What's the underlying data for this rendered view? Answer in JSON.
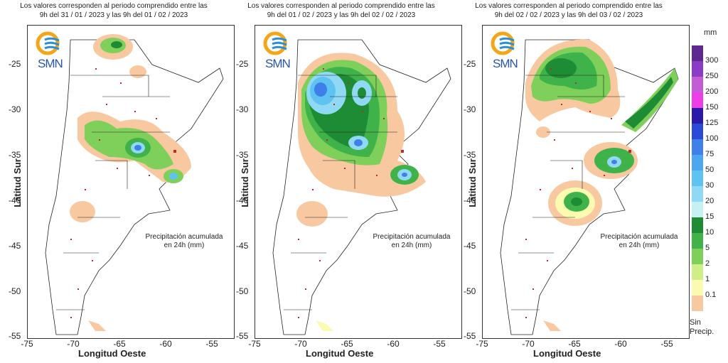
{
  "panels": [
    {
      "title_line1": "Los valores corresponden al periodo comprendido entre las",
      "title_line2": "9h del 31 / 01 / 2023  y las 9h del 01 / 02 / 2023",
      "note_line1": "Precipitación acumulada",
      "note_line2": "en 24h (mm)"
    },
    {
      "title_line1": "Los valores corresponden al periodo comprendido entre las",
      "title_line2": "9h del 01 / 02 / 2023  y las 9h del 02 / 02 / 2023",
      "note_line1": "Precipitación acumulada",
      "note_line2": "en 24h (mm)"
    },
    {
      "title_line1": "Los valores corresponden al periodo comprendido entre las",
      "title_line2": "9h del 02 / 02 / 2023  y las 9h del 03 / 02 / 2023",
      "note_line1": "Precipitación acumulada",
      "note_line2": "en 24h (mm)"
    }
  ],
  "logo_text": "SMN",
  "axes": {
    "y_label": "Latitud Sur",
    "x_label": "Longitud Oeste",
    "y_ticks": [
      "-25",
      "-30",
      "-35",
      "-40",
      "-45",
      "-50",
      "-55"
    ],
    "x_ticks": [
      "-75",
      "-70",
      "-65",
      "-60",
      "-55"
    ]
  },
  "legend": {
    "unit": "mm",
    "items": [
      {
        "label": "300",
        "color": "#5e2a91"
      },
      {
        "label": "250",
        "color": "#8b3cc4"
      },
      {
        "label": "200",
        "color": "#c45cd6"
      },
      {
        "label": "150",
        "color": "#ee3ee6"
      },
      {
        "label": "125",
        "color": "#2b1aa8"
      },
      {
        "label": "100",
        "color": "#2a49d6"
      },
      {
        "label": "75",
        "color": "#3f7fe8"
      },
      {
        "label": "50",
        "color": "#4ea6f0"
      },
      {
        "label": "30",
        "color": "#5fc3f2"
      },
      {
        "label": "20",
        "color": "#8fd9f5"
      },
      {
        "label": "15",
        "color": "#c7f0f5"
      },
      {
        "label": "10",
        "color": "#1e8c35"
      },
      {
        "label": "5",
        "color": "#3fb24a"
      },
      {
        "label": "2",
        "color": "#7fd05a"
      },
      {
        "label": "1",
        "color": "#cfee88"
      },
      {
        "label": "0.1",
        "color": "#fafab0"
      },
      {
        "label": "",
        "color": "#f8c9a0"
      }
    ],
    "no_precip_line1": "Sin",
    "no_precip_line2": "Precip."
  }
}
